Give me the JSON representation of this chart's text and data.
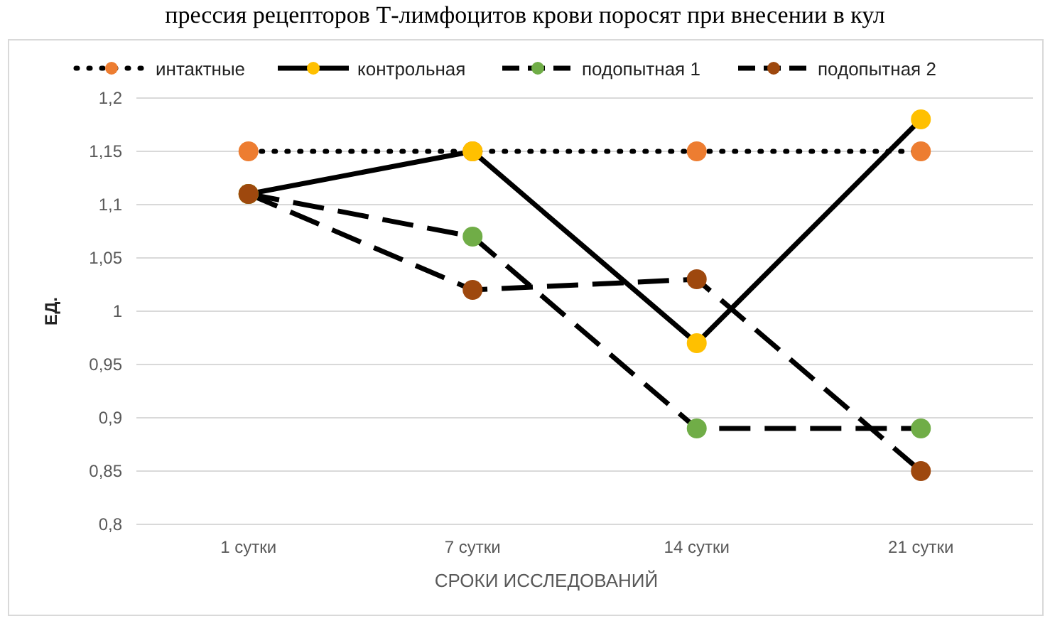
{
  "chart_data": {
    "type": "line",
    "title": "прессия рецепторов Т-лимфоцитов крови поросят при внесении в кул",
    "xlabel": "СРОКИ ИССЛЕДОВАНИЙ",
    "ylabel": "ЕД.",
    "categories": [
      "1 сутки",
      "7 сутки",
      "14 сутки",
      "21 сутки"
    ],
    "series": [
      {
        "name": "интактные",
        "color": "#ed7d31",
        "line_style": "dotted",
        "values": [
          1.15,
          1.15,
          1.15,
          1.15
        ]
      },
      {
        "name": "контрольная",
        "color": "#ffc000",
        "line_style": "solid",
        "values": [
          1.11,
          1.15,
          0.97,
          1.18
        ]
      },
      {
        "name": "подопытная 1",
        "color": "#70ad47",
        "line_style": "dashed",
        "values": [
          1.11,
          1.07,
          0.89,
          0.89
        ]
      },
      {
        "name": "подопытная 2",
        "color": "#9e480e",
        "line_style": "dashed",
        "values": [
          1.11,
          1.02,
          1.03,
          0.85
        ]
      }
    ],
    "ylim": [
      0.8,
      1.2
    ],
    "yticks": [
      {
        "value": 0.8,
        "label": "0,8"
      },
      {
        "value": 0.85,
        "label": "0,85"
      },
      {
        "value": 0.9,
        "label": "0,9"
      },
      {
        "value": 0.95,
        "label": "0,95"
      },
      {
        "value": 1,
        "label": "1"
      },
      {
        "value": 1.05,
        "label": "1,05"
      },
      {
        "value": 1.1,
        "label": "1,1"
      },
      {
        "value": 1.15,
        "label": "1,15"
      },
      {
        "value": 1.2,
        "label": "1,2"
      }
    ],
    "grid": "y",
    "legend": "top",
    "marker": "circle"
  }
}
